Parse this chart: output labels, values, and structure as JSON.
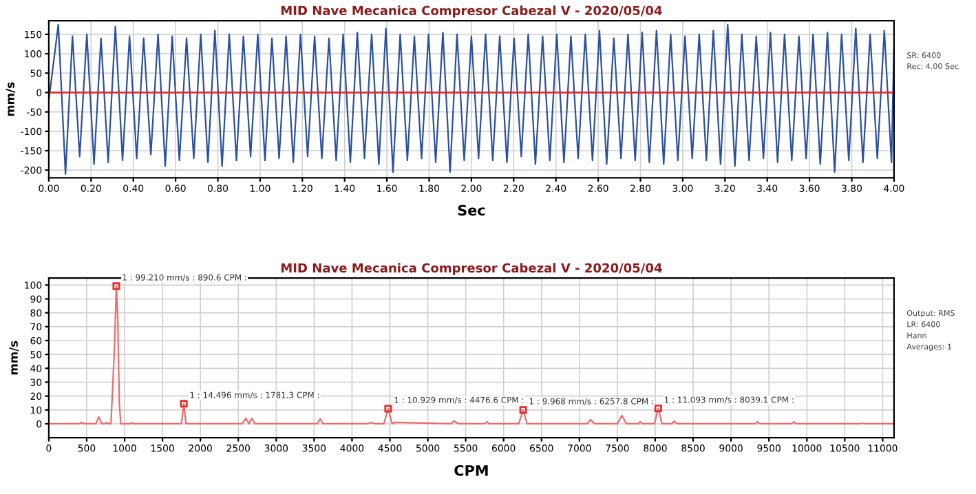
{
  "chart_data": [
    {
      "type": "line",
      "title": "MID Nave Mecanica Compresor Cabezal V - 2020/05/04",
      "xlabel": "Sec",
      "ylabel": "mm/s",
      "xlim": [
        0,
        4
      ],
      "xticks": [
        {
          "value": 0,
          "label": "0.00"
        },
        {
          "value": 0.2,
          "label": "0.20"
        },
        {
          "value": 0.4,
          "label": "0.40"
        },
        {
          "value": 0.6,
          "label": "0.60"
        },
        {
          "value": 0.8,
          "label": "0.80"
        },
        {
          "value": 1,
          "label": "1.00"
        },
        {
          "value": 1.2,
          "label": "1.20"
        },
        {
          "value": 1.4,
          "label": "1.40"
        },
        {
          "value": 1.6,
          "label": "1.60"
        },
        {
          "value": 1.8,
          "label": "1.80"
        },
        {
          "value": 2,
          "label": "2.00"
        },
        {
          "value": 2.2,
          "label": "2.20"
        },
        {
          "value": 2.4,
          "label": "2.40"
        },
        {
          "value": 2.6,
          "label": "2.60"
        },
        {
          "value": 2.8,
          "label": "2.80"
        },
        {
          "value": 3,
          "label": "3.00"
        },
        {
          "value": 3.2,
          "label": "3.20"
        },
        {
          "value": 3.4,
          "label": "3.40"
        },
        {
          "value": 3.6,
          "label": "3.60"
        },
        {
          "value": 3.8,
          "label": "3.80"
        },
        {
          "value": 4,
          "label": "4.00"
        }
      ],
      "ylim": [
        -220,
        185
      ],
      "yticks": [
        -200,
        -150,
        -100,
        -50,
        0,
        50,
        100,
        150
      ],
      "grid": true,
      "ref_lines": [
        {
          "axis": "y",
          "value": 0,
          "color": "#e8202a"
        }
      ],
      "annotations": [
        "SR: 6400",
        "Rec: 4.00 Sec"
      ],
      "series": [
        {
          "color": "#2a50a0",
          "x": [
            0,
            0.045,
            0.079,
            0.112,
            0.146,
            0.18,
            0.214,
            0.247,
            0.281,
            0.315,
            0.349,
            0.382,
            0.416,
            0.449,
            0.483,
            0.517,
            0.551,
            0.584,
            0.618,
            0.652,
            0.686,
            0.719,
            0.753,
            0.786,
            0.82,
            0.854,
            0.888,
            0.921,
            0.955,
            0.989,
            1.023,
            1.056,
            1.09,
            1.123,
            1.157,
            1.191,
            1.225,
            1.258,
            1.292,
            1.326,
            1.36,
            1.393,
            1.427,
            1.46,
            1.494,
            1.528,
            1.562,
            1.595,
            1.629,
            1.663,
            1.697,
            1.73,
            1.764,
            1.797,
            1.831,
            1.865,
            1.899,
            1.932,
            1.966,
            2.0,
            2.034,
            2.067,
            2.101,
            2.134,
            2.168,
            2.202,
            2.236,
            2.269,
            2.303,
            2.337,
            2.371,
            2.404,
            2.438,
            2.471,
            2.505,
            2.539,
            2.573,
            2.606,
            2.64,
            2.674,
            2.708,
            2.741,
            2.775,
            2.808,
            2.842,
            2.876,
            2.91,
            2.943,
            2.977,
            3.011,
            3.045,
            3.078,
            3.112,
            3.145,
            3.179,
            3.213,
            3.247,
            3.28,
            3.314,
            3.348,
            3.382,
            3.415,
            3.449,
            3.482,
            3.516,
            3.55,
            3.584,
            3.617,
            3.651,
            3.685,
            3.719,
            3.752,
            3.786,
            3.819,
            3.853,
            3.887,
            3.921,
            3.954,
            3.988,
            4.0
          ],
          "values": [
            -20,
            175,
            -210,
            145,
            -165,
            150,
            -185,
            140,
            -180,
            170,
            -175,
            145,
            -170,
            140,
            -160,
            150,
            -190,
            145,
            -175,
            140,
            -170,
            150,
            -180,
            160,
            -190,
            150,
            -175,
            145,
            -165,
            150,
            -175,
            140,
            -170,
            145,
            -180,
            150,
            -165,
            145,
            -170,
            140,
            -175,
            150,
            -180,
            155,
            -170,
            150,
            -185,
            165,
            -205,
            150,
            -175,
            145,
            -170,
            150,
            -180,
            155,
            -205,
            150,
            -175,
            145,
            -170,
            150,
            -175,
            145,
            -180,
            140,
            -165,
            150,
            -185,
            145,
            -175,
            150,
            -180,
            145,
            -170,
            150,
            -175,
            160,
            -185,
            140,
            -170,
            150,
            -175,
            155,
            -180,
            160,
            -185,
            150,
            -175,
            145,
            -170,
            150,
            -175,
            160,
            -185,
            175,
            -190,
            150,
            -175,
            145,
            -170,
            155,
            -180,
            150,
            -175,
            145,
            -170,
            150,
            -185,
            155,
            -205,
            150,
            -175,
            165,
            -180,
            150,
            -170,
            160,
            -180,
            120
          ]
        }
      ]
    },
    {
      "type": "line",
      "title": "MID Nave Mecanica Compresor Cabezal V - 2020/05/04",
      "xlabel": "CPM",
      "ylabel": "mm/s",
      "xlim": [
        0,
        11150
      ],
      "xticks": [
        0,
        500,
        1000,
        1500,
        2000,
        2500,
        3000,
        3500,
        4000,
        4500,
        5000,
        5500,
        6000,
        6500,
        7000,
        7500,
        8000,
        8500,
        9000,
        9500,
        10000,
        10500,
        11000
      ],
      "ylim": [
        -10,
        105
      ],
      "yticks": [
        0,
        10,
        20,
        30,
        40,
        50,
        60,
        70,
        80,
        90,
        100
      ],
      "grid": true,
      "annotations": [
        {
          "text": "1 : 99.210 mm/s : 890.6 CPM :",
          "x": 890.6,
          "y": 99.21
        },
        {
          "text": "1 : 14.496 mm/s : 1781.3 CPM :",
          "x": 1781.3,
          "y": 14.496
        },
        {
          "text": "1 : 10.929 mm/s : 4476.6 CPM :",
          "x": 4476.6,
          "y": 10.929
        },
        {
          "text": "1 : 9.968 mm/s : 6257.8 CPM :",
          "x": 6257.8,
          "y": 9.968
        },
        {
          "text": "1 : 11.093 mm/s : 8039.1 CPM :",
          "x": 8039.1,
          "y": 11.093
        },
        "Output: RMS",
        "LR: 6400",
        "Hann",
        "Averages: 1"
      ],
      "series": [
        {
          "color": "#f06a6a",
          "x": [
            0,
            400,
            430,
            460,
            620,
            660,
            700,
            740,
            760,
            780,
            820,
            850,
            870,
            890.6,
            910,
            930,
            950,
            980,
            1080,
            1100,
            1120,
            1700,
            1750,
            1781.3,
            1810,
            1850,
            2550,
            2600,
            2640,
            2680,
            2720,
            3540,
            3580,
            3620,
            4200,
            4250,
            4300,
            4420,
            4476.6,
            4530,
            4560,
            5300,
            5350,
            5400,
            5750,
            5780,
            5810,
            6200,
            6257.8,
            6310,
            7100,
            7150,
            7200,
            7500,
            7560,
            7620,
            7780,
            7800,
            7830,
            7990,
            8039.1,
            8090,
            8220,
            8250,
            8290,
            9320,
            9350,
            9380,
            9800,
            9830,
            9860,
            10700,
            10730,
            10760,
            11150
          ],
          "values": [
            0,
            0,
            1,
            0,
            0,
            5,
            0,
            0,
            1,
            0,
            0,
            35,
            60,
            99.21,
            75,
            15,
            0,
            0,
            0,
            1,
            0,
            0,
            0,
            14.496,
            0,
            0,
            0,
            4,
            0,
            4,
            0,
            0,
            3.5,
            0,
            0,
            1,
            0,
            0,
            10.929,
            0,
            1,
            0,
            2,
            0,
            0,
            1.5,
            0,
            0,
            9.968,
            0,
            0,
            3,
            0,
            0,
            6,
            0,
            0,
            1.5,
            0,
            0,
            11.093,
            0,
            0,
            2,
            0,
            0,
            1.5,
            0,
            0,
            1.5,
            0,
            0,
            0.5,
            0,
            0
          ]
        }
      ]
    }
  ]
}
